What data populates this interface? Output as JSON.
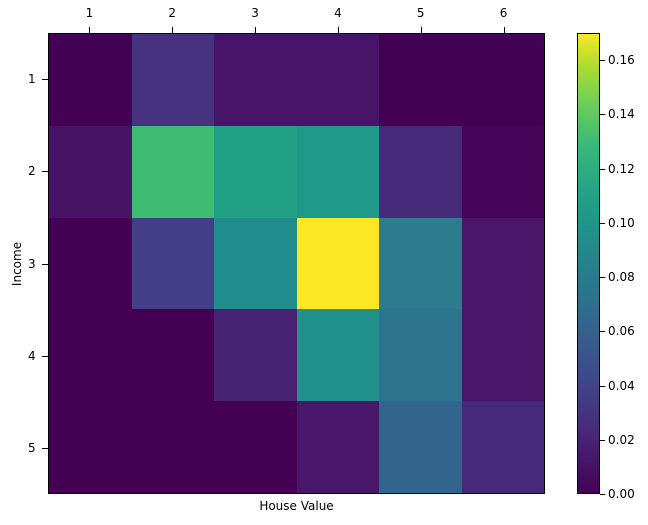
{
  "chart_data": {
    "type": "heatmap",
    "title": "",
    "xlabel": "House Value",
    "ylabel": "Income",
    "x_ticks": [
      "1",
      "2",
      "3",
      "4",
      "5",
      "6"
    ],
    "y_ticks": [
      "1",
      "2",
      "3",
      "4",
      "5"
    ],
    "x_tick_position": "top",
    "colormap": "viridis",
    "colorbar": {
      "min": 0.0,
      "max": 0.17,
      "ticks": [
        "0.00",
        "0.02",
        "0.04",
        "0.06",
        "0.08",
        "0.10",
        "0.12",
        "0.14",
        "0.16"
      ]
    },
    "values": [
      [
        0.003,
        0.025,
        0.01,
        0.008,
        0.002,
        0.0
      ],
      [
        0.01,
        0.12,
        0.095,
        0.093,
        0.022,
        0.003
      ],
      [
        0.0,
        0.03,
        0.085,
        0.17,
        0.07,
        0.012
      ],
      [
        0.0,
        0.0,
        0.018,
        0.088,
        0.067,
        0.012
      ],
      [
        0.0,
        0.0,
        0.0,
        0.013,
        0.058,
        0.022
      ]
    ],
    "cell_colors": [
      [
        "#440154",
        "#46327e",
        "#481467",
        "#481467",
        "#440154",
        "#440154"
      ],
      [
        "#471365",
        "#3fbc73",
        "#21a086",
        "#1f9a8a",
        "#472a7a",
        "#450457"
      ],
      [
        "#440154",
        "#433e85",
        "#218e8d",
        "#fde725",
        "#2c7c8e",
        "#481769"
      ],
      [
        "#440154",
        "#440154",
        "#482374",
        "#21918c",
        "#2d758e",
        "#481769"
      ],
      [
        "#440154",
        "#440154",
        "#440154",
        "#481769",
        "#32658e",
        "#46297a"
      ]
    ]
  }
}
